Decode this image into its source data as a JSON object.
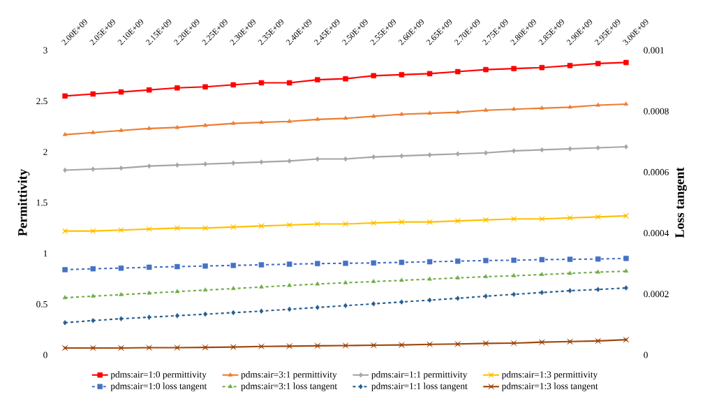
{
  "chart_data": {
    "type": "line",
    "categories": [
      "2.00E+09",
      "2.05E+09",
      "2.10E+09",
      "2.15E+09",
      "2.20E+09",
      "2.25E+09",
      "2.30E+09",
      "2.35E+09",
      "2.40E+09",
      "2.45E+09",
      "2.50E+09",
      "2.55E+09",
      "2.60E+09",
      "2.65E+09",
      "2.70E+09",
      "2.75E+09",
      "2.80E+09",
      "2.85E+09",
      "2.90E+09",
      "2.95E+09",
      "3.00E+09"
    ],
    "ylabel": "Permittivity",
    "y2label": "Loss tangent",
    "ylim": [
      0,
      3
    ],
    "yticks": [
      0,
      0.5,
      1,
      1.5,
      2,
      2.5,
      3
    ],
    "y2lim": [
      0,
      0.001
    ],
    "y2ticks": [
      0,
      0.0002,
      0.0004,
      0.0006,
      0.0008,
      0.001
    ],
    "legend": "bottom",
    "grid": false,
    "series": [
      {
        "name": "pdms:air=1:0 permittivity",
        "color": "#ff0000",
        "marker": "square",
        "line_style": "solid",
        "values": [
          2.55,
          2.57,
          2.59,
          2.61,
          2.63,
          2.64,
          2.66,
          2.68,
          2.68,
          2.71,
          2.72,
          2.75,
          2.76,
          2.77,
          2.79,
          2.81,
          2.82,
          2.83,
          2.85,
          2.87,
          2.88
        ]
      },
      {
        "name": "pdms:air=3:1 permittivity",
        "color": "#ed7d31",
        "marker": "triangle",
        "line_style": "solid",
        "values": [
          2.17,
          2.19,
          2.21,
          2.23,
          2.24,
          2.26,
          2.28,
          2.29,
          2.3,
          2.32,
          2.33,
          2.35,
          2.37,
          2.38,
          2.39,
          2.41,
          2.42,
          2.43,
          2.44,
          2.46,
          2.47
        ]
      },
      {
        "name": "pdms:air=1:1 permittivity",
        "color": "#a5a5a5",
        "marker": "diamond",
        "line_style": "solid",
        "values": [
          1.82,
          1.83,
          1.84,
          1.86,
          1.87,
          1.88,
          1.89,
          1.9,
          1.91,
          1.93,
          1.93,
          1.95,
          1.96,
          1.97,
          1.98,
          1.99,
          2.01,
          2.02,
          2.03,
          2.04,
          2.05
        ]
      },
      {
        "name": "pdms:air=1:3 permittivity",
        "color": "#ffc000",
        "marker": "cross",
        "line_style": "solid",
        "values": [
          1.22,
          1.22,
          1.23,
          1.24,
          1.25,
          1.25,
          1.26,
          1.27,
          1.28,
          1.29,
          1.29,
          1.3,
          1.31,
          1.31,
          1.32,
          1.33,
          1.34,
          1.34,
          1.35,
          1.36,
          1.37
        ]
      },
      {
        "name": "pdms:air=1:0 loss tangent",
        "color": "#4472c4",
        "marker": "square",
        "line_style": "dashed",
        "axis": "y2",
        "values": [
          0.00028,
          0.000283,
          0.000285,
          0.000288,
          0.00029,
          0.000292,
          0.000294,
          0.000296,
          0.000298,
          0.0003,
          0.000301,
          0.000302,
          0.000304,
          0.000306,
          0.000308,
          0.00031,
          0.000311,
          0.000313,
          0.000314,
          0.000315,
          0.000317
        ]
      },
      {
        "name": "pdms:air=3:1 loss tangent",
        "color": "#70ad47",
        "marker": "triangle",
        "line_style": "dashed",
        "axis": "y2",
        "values": [
          0.000188,
          0.000193,
          0.000198,
          0.000203,
          0.000208,
          0.000213,
          0.000218,
          0.000223,
          0.000228,
          0.000233,
          0.000237,
          0.000241,
          0.000245,
          0.000249,
          0.000253,
          0.000257,
          0.00026,
          0.000264,
          0.000268,
          0.000272,
          0.000275
        ]
      },
      {
        "name": "pdms:air=1:1 loss tangent",
        "color": "#255e91",
        "marker": "diamond",
        "line_style": "dashed",
        "axis": "y2",
        "values": [
          0.000106,
          0.000113,
          0.000119,
          0.000124,
          0.000129,
          0.000134,
          0.000139,
          0.000144,
          0.00015,
          0.000156,
          0.000162,
          0.000168,
          0.000174,
          0.00018,
          0.000186,
          0.000193,
          0.000199,
          0.000205,
          0.000211,
          0.000215,
          0.00022
        ]
      },
      {
        "name": "pdms:air=1:3 loss tangent",
        "color": "#9e480e",
        "marker": "cross",
        "line_style": "solid",
        "axis": "y2",
        "values": [
          2.3e-05,
          2.3e-05,
          2.3e-05,
          2.4e-05,
          2.4e-05,
          2.5e-05,
          2.6e-05,
          2.8e-05,
          2.9e-05,
          3e-05,
          3.1e-05,
          3.2e-05,
          3.3e-05,
          3.5e-05,
          3.6e-05,
          3.8e-05,
          3.9e-05,
          4.2e-05,
          4.4e-05,
          4.6e-05,
          5e-05
        ]
      }
    ]
  }
}
